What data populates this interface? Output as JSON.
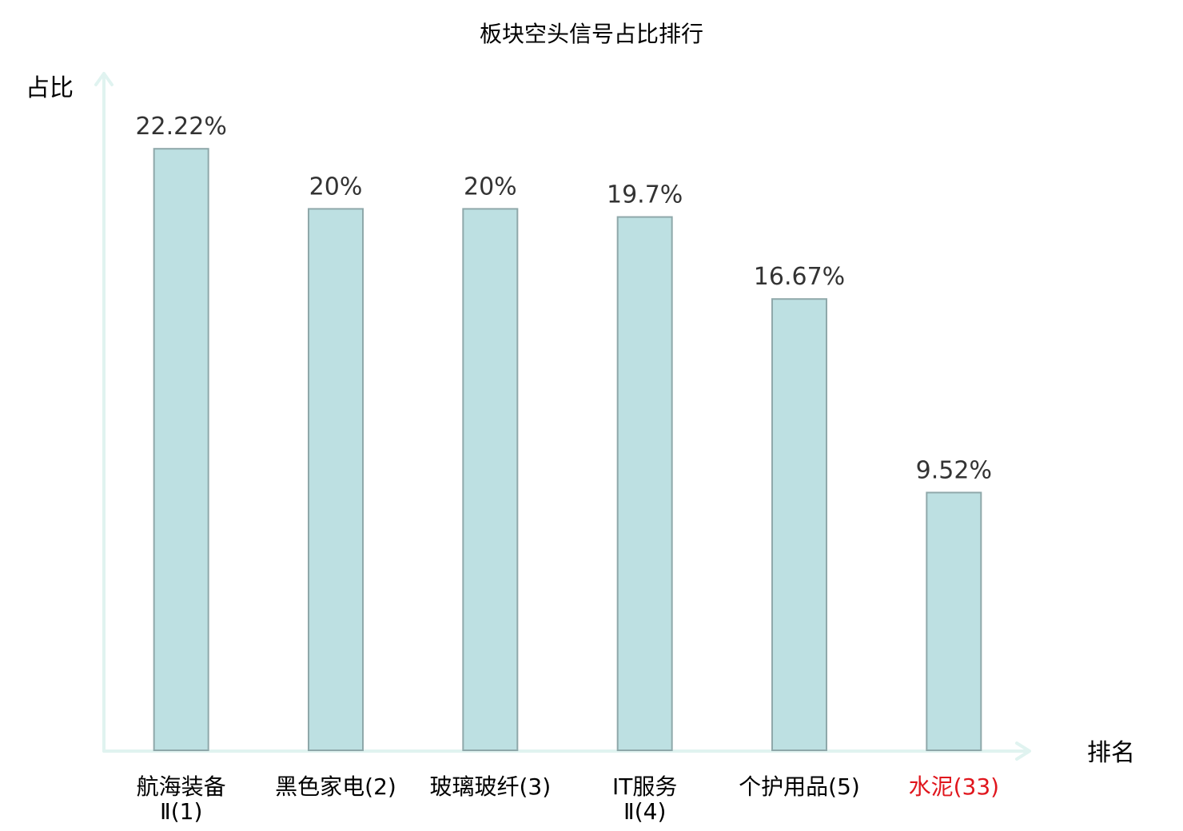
{
  "chart_data": {
    "type": "bar",
    "title": "板块空头信号占比排行",
    "ylabel": "占比",
    "xlabel": "排名",
    "categories": [
      {
        "name": "航海装备",
        "rank": "Ⅱ(1)",
        "highlight": false
      },
      {
        "name": "黑色家电(2)",
        "rank": "",
        "highlight": false
      },
      {
        "name": "玻璃玻纤(3)",
        "rank": "",
        "highlight": false
      },
      {
        "name": "IT服务",
        "rank": "Ⅱ(4)",
        "highlight": false
      },
      {
        "name": "个护用品(5)",
        "rank": "",
        "highlight": false
      },
      {
        "name": "水泥(33)",
        "rank": "",
        "highlight": true
      }
    ],
    "values": [
      22.22,
      20,
      20,
      19.7,
      16.67,
      9.52
    ],
    "value_labels": [
      "22.22%",
      "20%",
      "20%",
      "19.7%",
      "16.67%",
      "9.52%"
    ],
    "ylim": [
      0,
      25
    ],
    "grid": false,
    "legend": "none",
    "colors": {
      "bar_fill": "#bde0e2",
      "bar_stroke": "#8fa8aa",
      "axis": "#e0f3f0",
      "label": "#000000",
      "value_label": "#333333",
      "highlight": "#e0161d"
    }
  }
}
